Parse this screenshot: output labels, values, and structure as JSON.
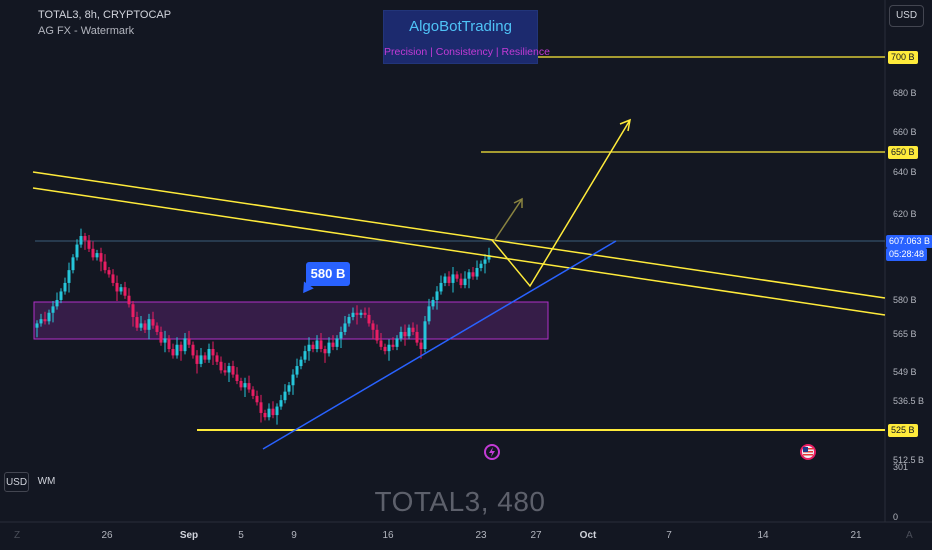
{
  "header": {
    "title": "TOTAL3, 8h, CRYPTOCAP",
    "subtitle": "AG FX - Watermark"
  },
  "branding": {
    "name": "AlgoBotTrading",
    "tagline": "Precision  | Consistency  | Resilience"
  },
  "currency_button": "USD",
  "price_axis": {
    "labels": [
      "680 B",
      "660 B",
      "640 B",
      "620 B",
      "580 B",
      "565 B",
      "549 B",
      "536.5 B",
      "512.5 B",
      "301",
      "0"
    ],
    "level_tags": [
      "700 B",
      "650 B",
      "525 B"
    ],
    "current_price": "607.063 B",
    "countdown": "05:28:48"
  },
  "time_axis": {
    "labels": [
      "26",
      "Sep",
      "5",
      "9",
      "16",
      "23",
      "27",
      "Oct",
      "7",
      "14",
      "21"
    ],
    "left_corner": "Z",
    "right_corner": "A"
  },
  "callout": "580 B",
  "watermark": "TOTAL3, 480",
  "bottom_buttons": [
    "USD",
    "WM"
  ],
  "colors": {
    "background": "#131722",
    "up_candle": "#26c6da",
    "down_candle": "#e91e63",
    "level_lines": "#ffeb3b",
    "trendline": "#2962ff",
    "zone_fill": "#3d1e4f",
    "zone_border": "#9c27b0"
  },
  "chart_data": {
    "type": "candlestick",
    "symbol": "TOTAL3",
    "interval": "8h",
    "y_unit": "B",
    "ylim": [
      512,
      712
    ],
    "closes": [
      575,
      577,
      576,
      580,
      583,
      586,
      590,
      594,
      600,
      606,
      612,
      616,
      614,
      610,
      606,
      608,
      604,
      600,
      598,
      594,
      590,
      592,
      588,
      584,
      578,
      573,
      575,
      572,
      577,
      574,
      571,
      566,
      568,
      563,
      560,
      565,
      562,
      568,
      565,
      560,
      556,
      560,
      558,
      563,
      560,
      557,
      553,
      552,
      555,
      551,
      548,
      545,
      547,
      544,
      541,
      538,
      533,
      531,
      535,
      532,
      536,
      539,
      543,
      546,
      551,
      555,
      558,
      562,
      565,
      563,
      567,
      563,
      561,
      566,
      564,
      568,
      571,
      575,
      578,
      580,
      579,
      580,
      579,
      575,
      572,
      567,
      564,
      562,
      565,
      564,
      568,
      571,
      569,
      573,
      571,
      566,
      563,
      576,
      583,
      586,
      590,
      594,
      597,
      594,
      598,
      596,
      593,
      596,
      599,
      597,
      601,
      603,
      605,
      607
    ],
    "levels": {
      "resistance_top": 700,
      "resistance_mid": 650,
      "support": 525
    },
    "zone": {
      "label": "580 B",
      "range": [
        565,
        582
      ]
    }
  }
}
